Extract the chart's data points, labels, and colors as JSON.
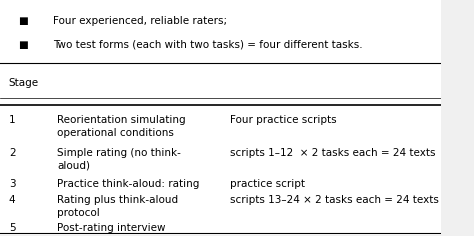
{
  "background_color": "#f0f0f0",
  "table_bg": "#ffffff",
  "bullet_points": [
    "Four experienced, reliable raters;",
    "Two test forms (each with two tasks) = four different tasks."
  ],
  "header": "Stage",
  "rows": [
    {
      "stage": "1",
      "description": "Reorientation simulating\noperational conditions",
      "detail": "Four practice scripts"
    },
    {
      "stage": "2",
      "description": "Simple rating (no think-\naloud)",
      "detail": "scripts 1–12  × 2 tasks each = 24 texts"
    },
    {
      "stage": "3",
      "description": "Practice think-aloud: rating",
      "detail": "practice script"
    },
    {
      "stage": "4",
      "description": "Rating plus think-aloud\nprotocol",
      "detail": "scripts 13–24 × 2 tasks each = 24 texts"
    },
    {
      "stage": "5",
      "description": "Post-rating interview",
      "detail": ""
    }
  ],
  "font_size": 7.5,
  "header_font_size": 7.5,
  "bullet_font_size": 7.5
}
